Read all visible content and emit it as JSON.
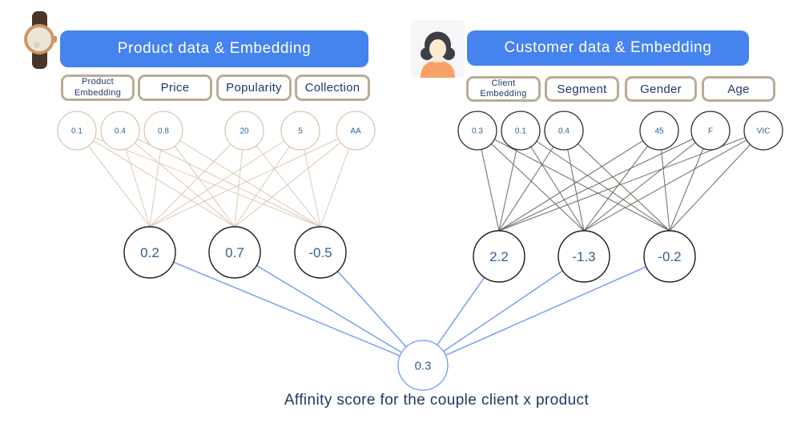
{
  "colors": {
    "header_bg": "#4583ee",
    "header_text": "#ffffff",
    "feature_box_border": "#b9ac97",
    "feature_box_text": "#1f3864",
    "product_line": "#ddc9b2",
    "product_circle_stroke": "#dcc6ae",
    "customer_line": "#6e695e",
    "customer_circle_stroke": "#2d2d2d",
    "hidden_circle_stroke": "#1a1a1a",
    "output_line": "#6d9bf1",
    "output_circle_stroke": "#6d9bf1",
    "node_text": "#35618a",
    "caption_text": "#1f3864"
  },
  "product": {
    "icon": "watch-icon",
    "header_label": "Product data & Embedding",
    "features": [
      "Product Embedding",
      "Price",
      "Popularity",
      "Collection"
    ],
    "input_values": [
      "0.1",
      "0.4",
      "0.8",
      "20",
      "5",
      "AA"
    ],
    "hidden_values": [
      "0.2",
      "0.7",
      "-0.5"
    ]
  },
  "customer": {
    "icon": "woman-avatar-icon",
    "header_label": "Customer data & Embedding",
    "features": [
      "Client Embedding",
      "Segment",
      "Gender",
      "Age"
    ],
    "input_values": [
      "0.3",
      "0.1",
      "0.4",
      "45",
      "F",
      "VIC"
    ],
    "hidden_values": [
      "2.2",
      "-1.3",
      "-0.2"
    ]
  },
  "output": {
    "value": "0.3",
    "caption": "Affinity score for the couple client x product"
  }
}
